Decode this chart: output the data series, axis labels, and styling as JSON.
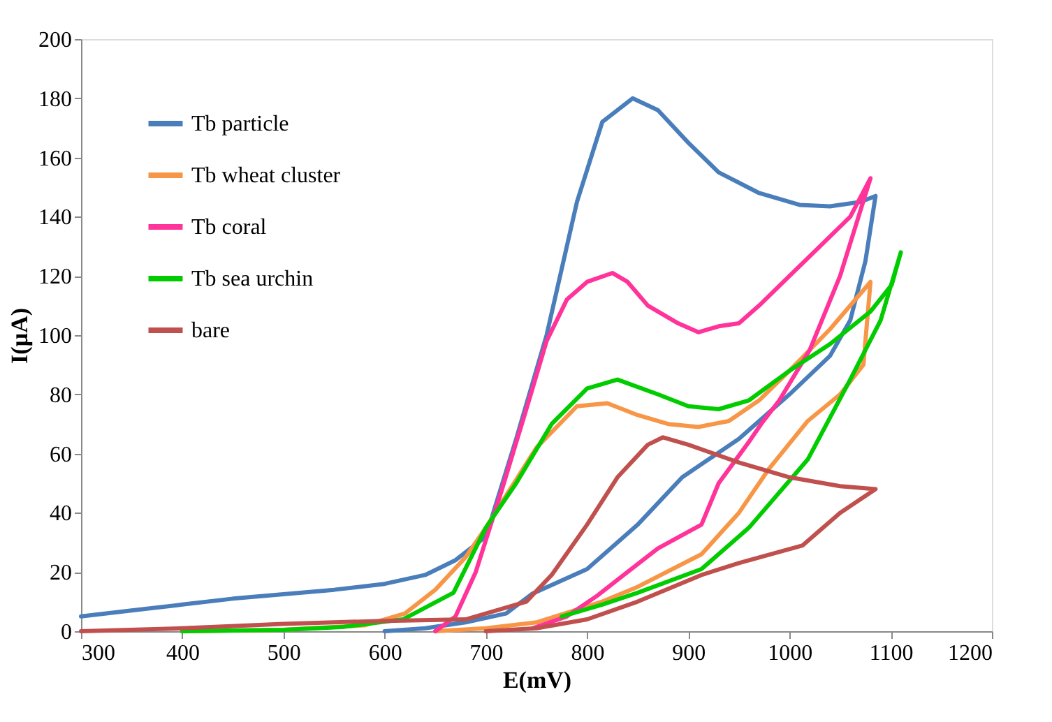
{
  "chart_data": {
    "type": "line",
    "xlabel": "E(mV)",
    "ylabel": "I(µA)",
    "xlim": [
      300,
      1200
    ],
    "ylim": [
      0,
      200
    ],
    "xticks": [
      300,
      400,
      500,
      600,
      700,
      800,
      900,
      1000,
      1100,
      1200
    ],
    "yticks": [
      0,
      20,
      40,
      60,
      80,
      100,
      120,
      140,
      160,
      180,
      200
    ],
    "grid": false,
    "legend": "top left",
    "line_style": "solid",
    "series": [
      {
        "name": "Tb particle",
        "color": "#4a7ebb",
        "x": [
          300,
          350,
          400,
          450,
          500,
          550,
          600,
          640,
          670,
          700,
          730,
          760,
          790,
          815,
          845,
          870,
          900,
          930,
          970,
          1010,
          1040,
          1070,
          1085,
          1075,
          1060,
          1040,
          1000,
          950,
          894,
          850,
          800,
          746,
          720,
          680,
          640,
          600
        ],
        "values": [
          5,
          7,
          9,
          11,
          12.5,
          14,
          16,
          19,
          24,
          32,
          65,
          100,
          145,
          172,
          180,
          176,
          165,
          155,
          148,
          144,
          143.5,
          145,
          147,
          125,
          105,
          93,
          80,
          65,
          52,
          36,
          21,
          12.7,
          6,
          3,
          1,
          0
        ]
      },
      {
        "name": "Tb wheat cluster",
        "color": "#f79646",
        "x": [
          400,
          500,
          580,
          620,
          650,
          680,
          700,
          750,
          790,
          820,
          850,
          880,
          910,
          940,
          970,
          1000,
          1040,
          1080,
          1073,
          1050,
          1018,
          980,
          950,
          913,
          850,
          815,
          750,
          700,
          650
        ],
        "values": [
          0,
          0.5,
          2,
          6,
          14,
          25,
          35,
          62,
          76,
          77,
          73,
          70,
          69,
          71,
          78,
          88,
          102,
          118,
          90,
          80,
          71,
          55,
          40,
          26,
          15,
          10,
          3,
          1,
          0
        ]
      },
      {
        "name": "Tb coral",
        "color": "#ff3399",
        "x": [
          650,
          670,
          690,
          716,
          740,
          760,
          780,
          800,
          825,
          840,
          860,
          890,
          910,
          930,
          950,
          970,
          1000,
          1030,
          1060,
          1080,
          1070,
          1050,
          1020,
          990,
          972,
          960,
          930,
          913,
          870,
          840,
          810,
          780,
          746
        ],
        "values": [
          0,
          5,
          20,
          48,
          75,
          98,
          112,
          118,
          121,
          118,
          110,
          104,
          101,
          103,
          104,
          110,
          120,
          130,
          140,
          153,
          142,
          120,
          95,
          78,
          70,
          64,
          50,
          36,
          28,
          20,
          12,
          5,
          1
        ]
      },
      {
        "name": "Tb sea urchin",
        "color": "#00cc00",
        "x": [
          775,
          815,
          850,
          913,
          960,
          1018,
          1060,
          1090,
          1110,
          1101,
          1080,
          1040,
          1000,
          960,
          930,
          900,
          870,
          830,
          800,
          765,
          730,
          700,
          668,
          618,
          560,
          500,
          400
        ],
        "values": [
          5,
          9,
          13,
          21,
          35,
          58,
          85,
          105,
          128,
          117,
          108,
          97,
          88,
          78,
          75,
          76,
          80,
          85,
          82,
          70,
          50,
          35,
          13,
          4,
          1.5,
          0.5,
          0
        ]
      },
      {
        "name": "bare",
        "color": "#c0504d",
        "x": [
          300,
          400,
          500,
          600,
          680,
          710,
          740,
          765,
          800,
          830,
          860,
          875,
          900,
          950,
          1000,
          1050,
          1085,
          1050,
          1013,
          950,
          913,
          850,
          800,
          750,
          700
        ],
        "values": [
          0,
          1,
          2.5,
          3.5,
          4,
          7,
          10,
          19,
          36,
          52,
          63,
          65.5,
          63,
          57,
          52,
          49,
          48,
          40,
          29,
          23,
          19,
          10,
          4,
          1,
          0
        ]
      }
    ]
  }
}
